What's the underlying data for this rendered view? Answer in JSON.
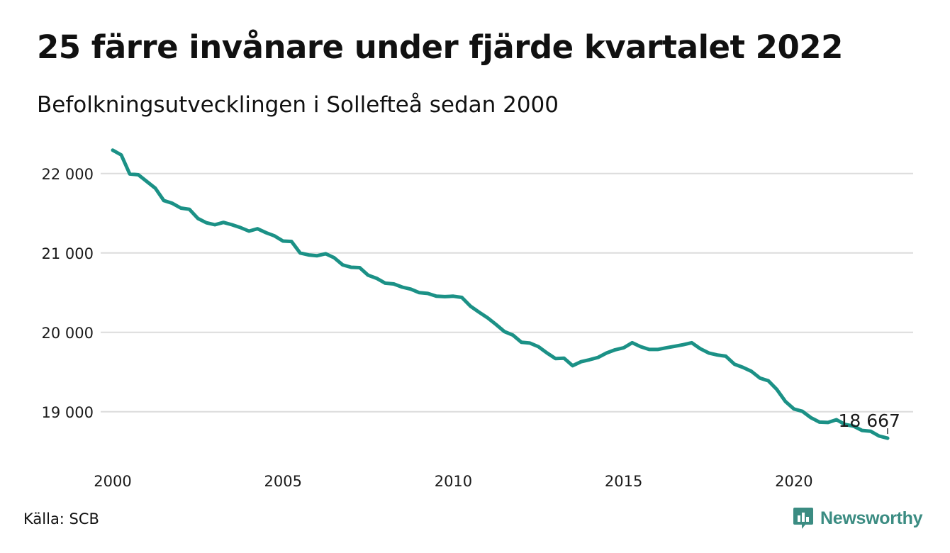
{
  "title": "25 färre invånare under fjärde kvartalet 2022",
  "subtitle": "Befolkningsutvecklingen i Sollefteå sedan 2000",
  "source": "Källa: SCB",
  "brand": {
    "name": "Newsworthy",
    "color": "#3b8c82",
    "icon": "bar-chart-speech-bubble-icon"
  },
  "chart_data": {
    "type": "line",
    "series": [
      {
        "color": "#1b9186",
        "x": [
          2000,
          2000.25,
          2000.5,
          2000.75,
          2001,
          2001.25,
          2001.5,
          2001.75,
          2002,
          2002.25,
          2002.5,
          2002.75,
          2003,
          2003.25,
          2003.5,
          2003.75,
          2004,
          2004.25,
          2004.5,
          2004.75,
          2005,
          2005.25,
          2005.5,
          2005.75,
          2006,
          2006.25,
          2006.5,
          2006.75,
          2007,
          2007.25,
          2007.5,
          2007.75,
          2008,
          2008.25,
          2008.5,
          2008.75,
          2009,
          2009.25,
          2009.5,
          2009.75,
          2010,
          2010.25,
          2010.5,
          2010.75,
          2011,
          2011.25,
          2011.5,
          2011.75,
          2012,
          2012.25,
          2012.5,
          2012.75,
          2013,
          2013.25,
          2013.5,
          2013.75,
          2014,
          2014.25,
          2014.5,
          2014.75,
          2015,
          2015.25,
          2015.5,
          2015.75,
          2016,
          2016.25,
          2016.5,
          2016.75,
          2017,
          2017.25,
          2017.5,
          2017.75,
          2018,
          2018.25,
          2018.5,
          2018.75,
          2019,
          2019.25,
          2019.5,
          2019.75,
          2020,
          2020.25,
          2020.5,
          2020.75,
          2021,
          2021.25,
          2021.5,
          2021.75,
          2022,
          2022.25,
          2022.5,
          2022.75
        ],
        "values": [
          22295,
          22235,
          21995,
          21985,
          21900,
          21815,
          21660,
          21625,
          21565,
          21550,
          21435,
          21380,
          21355,
          21385,
          21355,
          21320,
          21275,
          21305,
          21255,
          21215,
          21150,
          21145,
          21000,
          20975,
          20965,
          20990,
          20940,
          20850,
          20820,
          20815,
          20720,
          20680,
          20620,
          20610,
          20570,
          20545,
          20500,
          20490,
          20455,
          20450,
          20455,
          20440,
          20330,
          20255,
          20185,
          20100,
          20010,
          19965,
          19875,
          19865,
          19820,
          19740,
          19670,
          19675,
          19580,
          19630,
          19655,
          19685,
          19740,
          19780,
          19805,
          19870,
          19820,
          19785,
          19785,
          19805,
          19825,
          19845,
          19870,
          19795,
          19740,
          19715,
          19700,
          19600,
          19560,
          19510,
          19425,
          19390,
          19280,
          19130,
          19035,
          19005,
          18925,
          18870,
          18865,
          18900,
          18840,
          18820,
          18765,
          18755,
          18695,
          18667
        ]
      }
    ],
    "xticks": [
      2000,
      2005,
      2010,
      2015,
      2020
    ],
    "xtick_labels": [
      "2000",
      "2005",
      "2010",
      "2015",
      "2020"
    ],
    "yticks": [
      19000,
      20000,
      21000,
      22000
    ],
    "ytick_labels": [
      "19 000",
      "20 000",
      "21 000",
      "22 000"
    ],
    "xlim": [
      1999.5,
      2023.5
    ],
    "ylim": [
      18400,
      22400
    ],
    "grid": "horizontal",
    "annotations": [
      {
        "x": 2022.75,
        "value": 18667,
        "text": "18 667"
      }
    ]
  }
}
